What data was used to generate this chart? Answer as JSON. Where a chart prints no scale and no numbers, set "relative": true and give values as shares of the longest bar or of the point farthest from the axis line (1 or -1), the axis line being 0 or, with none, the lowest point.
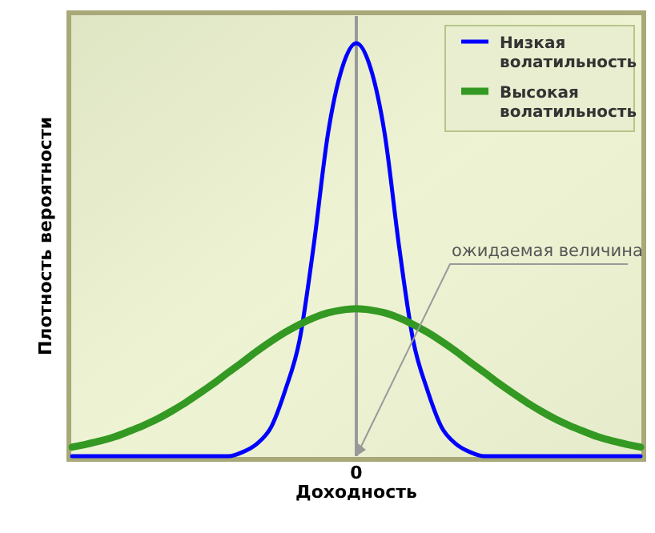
{
  "chart_data": {
    "type": "line",
    "relative": true,
    "xlabel": "Доходность",
    "ylabel": "Плотность вероятности",
    "categories": [
      null,
      null,
      null,
      null,
      null,
      null,
      null,
      null,
      null,
      null,
      null,
      null,
      null,
      null,
      null,
      null,
      null,
      null,
      null,
      null,
      null,
      null,
      null,
      null,
      null,
      null,
      null,
      null,
      null,
      null,
      null,
      null,
      null,
      null,
      null,
      null,
      null,
      null,
      null,
      null,
      null
    ],
    "series": [
      {
        "name": "Низкая волатильность",
        "color": "#0000ff",
        "values": [
          0,
          0,
          0,
          0,
          0,
          0,
          0,
          0,
          0,
          0,
          0,
          0,
          0.01,
          0.03,
          0.07,
          0.16,
          0.28,
          0.51,
          0.78,
          0.94,
          1,
          0.94,
          0.78,
          0.51,
          0.28,
          0.16,
          0.07,
          0.03,
          0.01,
          0,
          0,
          0,
          0,
          0,
          0,
          0,
          0,
          0,
          0,
          0,
          0
        ]
      },
      {
        "name": "Высокая волатильность",
        "color": "#339922",
        "values": [
          0.022,
          0.029,
          0.037,
          0.047,
          0.06,
          0.074,
          0.09,
          0.109,
          0.13,
          0.153,
          0.177,
          0.203,
          0.228,
          0.254,
          0.278,
          0.3,
          0.319,
          0.335,
          0.347,
          0.354,
          0.357,
          0.354,
          0.347,
          0.335,
          0.319,
          0.3,
          0.278,
          0.254,
          0.228,
          0.203,
          0.177,
          0.153,
          0.13,
          0.109,
          0.09,
          0.074,
          0.06,
          0.047,
          0.037,
          0.029,
          0.022
        ]
      }
    ],
    "ref_lines": [
      {
        "axis": "x",
        "label": "0",
        "color": "#999999"
      }
    ],
    "annotations": [
      "ожидаемая величина"
    ],
    "legend": "top right"
  }
}
